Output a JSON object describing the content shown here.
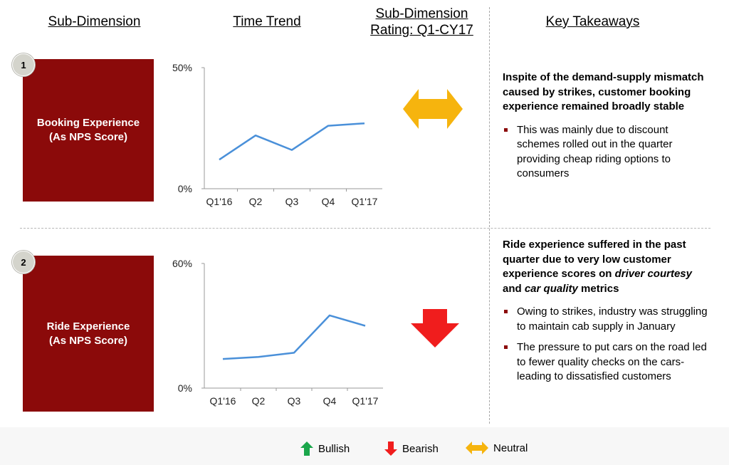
{
  "headers": {
    "sub_dimension": "Sub-Dimension",
    "time_trend": "Time Trend",
    "rating_line1": "Sub-Dimension",
    "rating_line2": "Rating: Q1-CY17",
    "key_takeaways": "Key Takeaways"
  },
  "rows": [
    {
      "badge": "1",
      "label_line1": "Booking Experience",
      "label_line2": "(As NPS Score)",
      "rating": "neutral",
      "takeaway_head": "Inspite of the demand-supply mismatch caused by strikes, customer booking experience remained broadly stable",
      "bullets": [
        "This was mainly due to discount schemes rolled out in the quarter providing cheap riding options to consumers"
      ]
    },
    {
      "badge": "2",
      "label_line1": "Ride Experience",
      "label_line2": "(As NPS Score)",
      "rating": "bearish",
      "takeaway_head_parts": {
        "p1": "Ride experience suffered in the past quarter due to very low customer experience scores on ",
        "em1": "driver courtesy",
        "p2": " and ",
        "em2": "car quality",
        "p3": " metrics"
      },
      "bullets": [
        "Owing to strikes, industry was struggling to maintain cab supply in January",
        "The pressure to put cars on the road led to fewer quality checks on the cars- leading to dissatisfied customers"
      ]
    }
  ],
  "chart_data": [
    {
      "type": "line",
      "categories": [
        "Q1'16",
        "Q2",
        "Q3",
        "Q4",
        "Q1'17"
      ],
      "values": [
        12,
        22,
        16,
        26,
        27
      ],
      "ylim": [
        0,
        50
      ],
      "yticks": [
        "0%",
        "50%"
      ],
      "color": "#4a90d9"
    },
    {
      "type": "line",
      "categories": [
        "Q1'16",
        "Q2",
        "Q3",
        "Q4",
        "Q1'17"
      ],
      "values": [
        14,
        15,
        17,
        35,
        30
      ],
      "ylim": [
        0,
        60
      ],
      "yticks": [
        "0%",
        "60%"
      ],
      "color": "#4a90d9"
    }
  ],
  "legend": [
    {
      "label": "Bullish",
      "icon": "up-arrow-icon",
      "color": "#1aa64b"
    },
    {
      "label": "Bearish",
      "icon": "down-arrow-icon",
      "color": "#f01d1d"
    },
    {
      "label": "Neutral",
      "icon": "double-arrow-icon",
      "color": "#f6b40e"
    }
  ],
  "colors": {
    "box": "#8b0a0a",
    "neutral": "#f6b40e",
    "bearish": "#f01d1d",
    "bullish": "#1aa64b"
  }
}
